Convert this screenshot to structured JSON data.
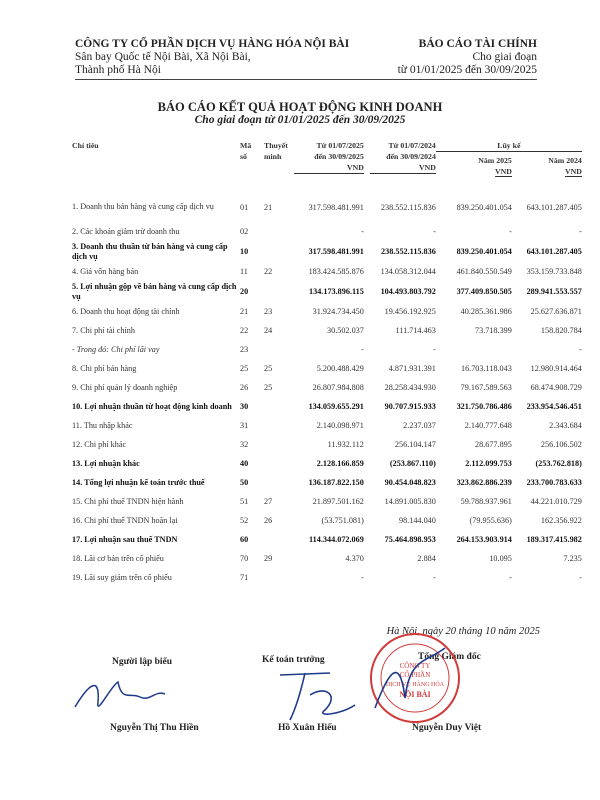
{
  "header": {
    "company": "CÔNG TY CỔ PHẦN DỊCH VỤ HÀNG HÓA NỘI BÀI",
    "address1": "Sân bay Quốc tế Nội Bài, Xã Nội Bài,",
    "address2": "Thành phố Hà Nội",
    "report_type": "BÁO CÁO TÀI CHÍNH",
    "period_label": "Cho giai đoạn",
    "period": "từ 01/01/2025 đến 30/09/2025"
  },
  "title": "BÁO CÁO KẾT QUẢ HOẠT ĐỘNG KINH DOANH",
  "subtitle": "Cho giai đoạn từ 01/01/2025 đến 30/09/2025",
  "columns": {
    "label": "Chỉ tiêu",
    "ma1": "Mã",
    "ma2": "số",
    "tm1": "Thuyết",
    "tm2": "minh",
    "c1a": "Từ 01/07/2025",
    "c1b": "đến 30/09/2025",
    "c2a": "Từ 01/07/2024",
    "c2b": "đến 30/09/2024",
    "luyke": "Lũy kế",
    "c3": "Năm 2025",
    "c4": "Năm 2024",
    "unit": "VND"
  },
  "rows": [
    {
      "label": "1. Doanh thu bán hàng và cung cấp dịch vụ",
      "ma": "01",
      "tm": "21",
      "v": [
        "317.598.481.991",
        "238.552.115.836",
        "839.250.401.054",
        "643.101.287.405"
      ]
    },
    {
      "label": "2. Các khoản giảm trừ doanh thu",
      "ma": "02",
      "tm": "",
      "v": [
        "-",
        "-",
        "-",
        "-"
      ]
    },
    {
      "label": "3. Doanh thu thuần từ bán hàng và cung cấp dịch vụ",
      "ma": "10",
      "tm": "",
      "bold": true,
      "v": [
        "317.598.481.991",
        "238.552.115.836",
        "839.250.401.054",
        "643.101.287.405"
      ]
    },
    {
      "label": "4. Giá vốn hàng bán",
      "ma": "11",
      "tm": "22",
      "v": [
        "183.424.585.876",
        "134.058.312.044",
        "461.840.550.549",
        "353.159.733.848"
      ]
    },
    {
      "label": "5. Lợi nhuận gộp về bán hàng và cung cấp dịch vụ",
      "ma": "20",
      "tm": "",
      "bold": true,
      "v": [
        "134.173.896.115",
        "104.493.803.792",
        "377.409.850.505",
        "289.941.553.557"
      ]
    },
    {
      "label": "6. Doanh thu hoạt động tài chính",
      "ma": "21",
      "tm": "23",
      "v": [
        "31.924.734.450",
        "19.456.192.925",
        "40.285.361.986",
        "25.627.636.871"
      ]
    },
    {
      "label": "7. Chi phí tài chính",
      "ma": "22",
      "tm": "24",
      "v": [
        "30.502.037",
        "111.714.463",
        "73.718.399",
        "158.820.784"
      ]
    },
    {
      "label": "- Trong đó: Chi phí lãi vay",
      "ma": "23",
      "tm": "",
      "italic": true,
      "v": [
        "-",
        "-",
        "",
        "-"
      ]
    },
    {
      "label": "8. Chi phí bán hàng",
      "ma": "25",
      "tm": "25",
      "v": [
        "5.200.488.429",
        "4.871.931.391",
        "16.703.118.043",
        "12.980.914.464"
      ]
    },
    {
      "label": "9. Chi phí quản lý doanh nghiệp",
      "ma": "26",
      "tm": "25",
      "v": [
        "26.807.984.808",
        "28.258.434.930",
        "79.167.589.563",
        "68.474.908.729"
      ]
    },
    {
      "label": "10. Lợi nhuận thuần từ hoạt động kinh doanh",
      "ma": "30",
      "tm": "",
      "bold": true,
      "v": [
        "134.059.655.291",
        "90.707.915.933",
        "321.750.786.486",
        "233.954.546.451"
      ]
    },
    {
      "label": "11. Thu nhập khác",
      "ma": "31",
      "tm": "",
      "v": [
        "2.140.098.971",
        "2.237.037",
        "2.140.777.648",
        "2.343.684"
      ]
    },
    {
      "label": "12. Chi phí khác",
      "ma": "32",
      "tm": "",
      "v": [
        "11.932.112",
        "256.104.147",
        "28.677.895",
        "256.106.502"
      ]
    },
    {
      "label": "13. Lợi nhuận khác",
      "ma": "40",
      "tm": "",
      "bold": true,
      "v": [
        "2.128.166.859",
        "(253.867.110)",
        "2.112.099.753",
        "(253.762.818)"
      ]
    },
    {
      "label": "14. Tổng lợi nhuận kế toán trước thuế",
      "ma": "50",
      "tm": "",
      "bold": true,
      "v": [
        "136.187.822.150",
        "90.454.048.823",
        "323.862.886.239",
        "233.700.783.633"
      ]
    },
    {
      "label": "15. Chi phí thuế TNDN hiện hành",
      "ma": "51",
      "tm": "27",
      "v": [
        "21.897.501.162",
        "14.891.005.830",
        "59.788.937.961",
        "44.221.010.729"
      ]
    },
    {
      "label": "16. Chi phí thuế TNDN hoãn lại",
      "ma": "52",
      "tm": "26",
      "v": [
        "(53.751.081)",
        "98.144.040",
        "(79.955.636)",
        "162.356.922"
      ]
    },
    {
      "label": "17. Lợi nhuận sau thuế TNDN",
      "ma": "60",
      "tm": "",
      "bold": true,
      "v": [
        "114.344.072.069",
        "75.464.898.953",
        "264.153.903.914",
        "189.317.415.982"
      ]
    },
    {
      "label": "18. Lãi cơ bản trên cổ phiếu",
      "ma": "70",
      "tm": "29",
      "v": [
        "4.370",
        "2.884",
        "10.095",
        "7.235"
      ]
    },
    {
      "label": "19. Lãi suy giảm trên cổ phiếu",
      "ma": "71",
      "tm": "",
      "v": [
        "-",
        "-",
        "-",
        "-"
      ]
    }
  ],
  "signature": {
    "place_date": "Hà Nội, ngày 20 tháng 10 năm 2025",
    "preparer_title": "Người lập biểu",
    "preparer_name": "Nguyễn Thị Thu Hiền",
    "accountant_title": "Kế toán trưởng",
    "accountant_name": "Hồ Xuân Hiếu",
    "director_title": "Tổng Giám đốc",
    "director_name": "Nguyễn Duy Việt",
    "stamp_text": "CÔNG TY CỔ PHẦN DỊCH VỤ HÀNG HÓA NỘI BÀI",
    "stamp_color": "#d23a3a"
  }
}
